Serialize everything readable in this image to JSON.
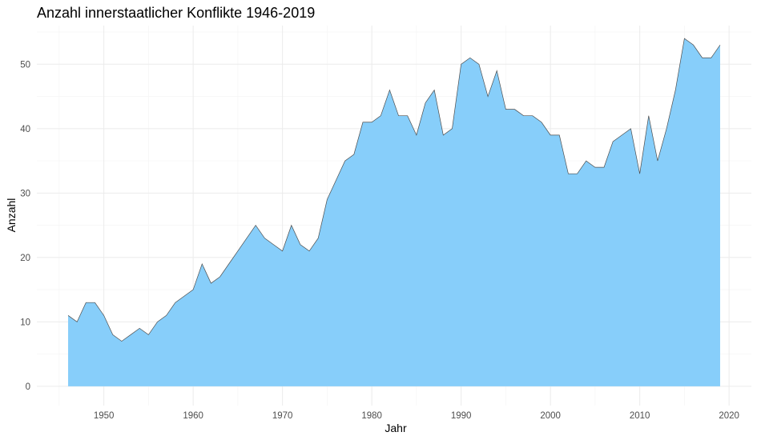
{
  "chart_data": {
    "type": "area",
    "title": "Anzahl innerstaatlicher Konflikte 1946-2019",
    "xlabel": "Jahr",
    "ylabel": "Anzahl",
    "xlim": [
      1942.5,
      2022.5
    ],
    "ylim": [
      -3,
      56
    ],
    "x_ticks": [
      1950,
      1960,
      1970,
      1980,
      1990,
      2000,
      2010,
      2020
    ],
    "y_ticks": [
      0,
      10,
      20,
      30,
      40,
      50
    ],
    "grid": true,
    "fill_color": "#87CEFA",
    "line_color": "#4d4d4d",
    "x": [
      1946,
      1947,
      1948,
      1949,
      1950,
      1951,
      1952,
      1953,
      1954,
      1955,
      1956,
      1957,
      1958,
      1959,
      1960,
      1961,
      1962,
      1963,
      1964,
      1965,
      1966,
      1967,
      1968,
      1969,
      1970,
      1971,
      1972,
      1973,
      1974,
      1975,
      1976,
      1977,
      1978,
      1979,
      1980,
      1981,
      1982,
      1983,
      1984,
      1985,
      1986,
      1987,
      1988,
      1989,
      1990,
      1991,
      1992,
      1993,
      1994,
      1995,
      1996,
      1997,
      1998,
      1999,
      2000,
      2001,
      2002,
      2003,
      2004,
      2005,
      2006,
      2007,
      2008,
      2009,
      2010,
      2011,
      2012,
      2013,
      2014,
      2015,
      2016,
      2017,
      2018,
      2019
    ],
    "values": [
      11,
      10,
      13,
      13,
      11,
      8,
      7,
      8,
      9,
      8,
      10,
      11,
      13,
      14,
      15,
      19,
      16,
      17,
      19,
      21,
      23,
      25,
      23,
      22,
      21,
      25,
      22,
      21,
      23,
      29,
      32,
      35,
      36,
      41,
      41,
      42,
      46,
      42,
      42,
      39,
      44,
      46,
      39,
      40,
      50,
      51,
      50,
      45,
      49,
      43,
      43,
      42,
      42,
      41,
      39,
      39,
      33,
      33,
      35,
      34,
      34,
      38,
      39,
      40,
      33,
      42,
      35,
      40,
      46,
      54,
      53,
      51,
      51,
      53
    ]
  }
}
